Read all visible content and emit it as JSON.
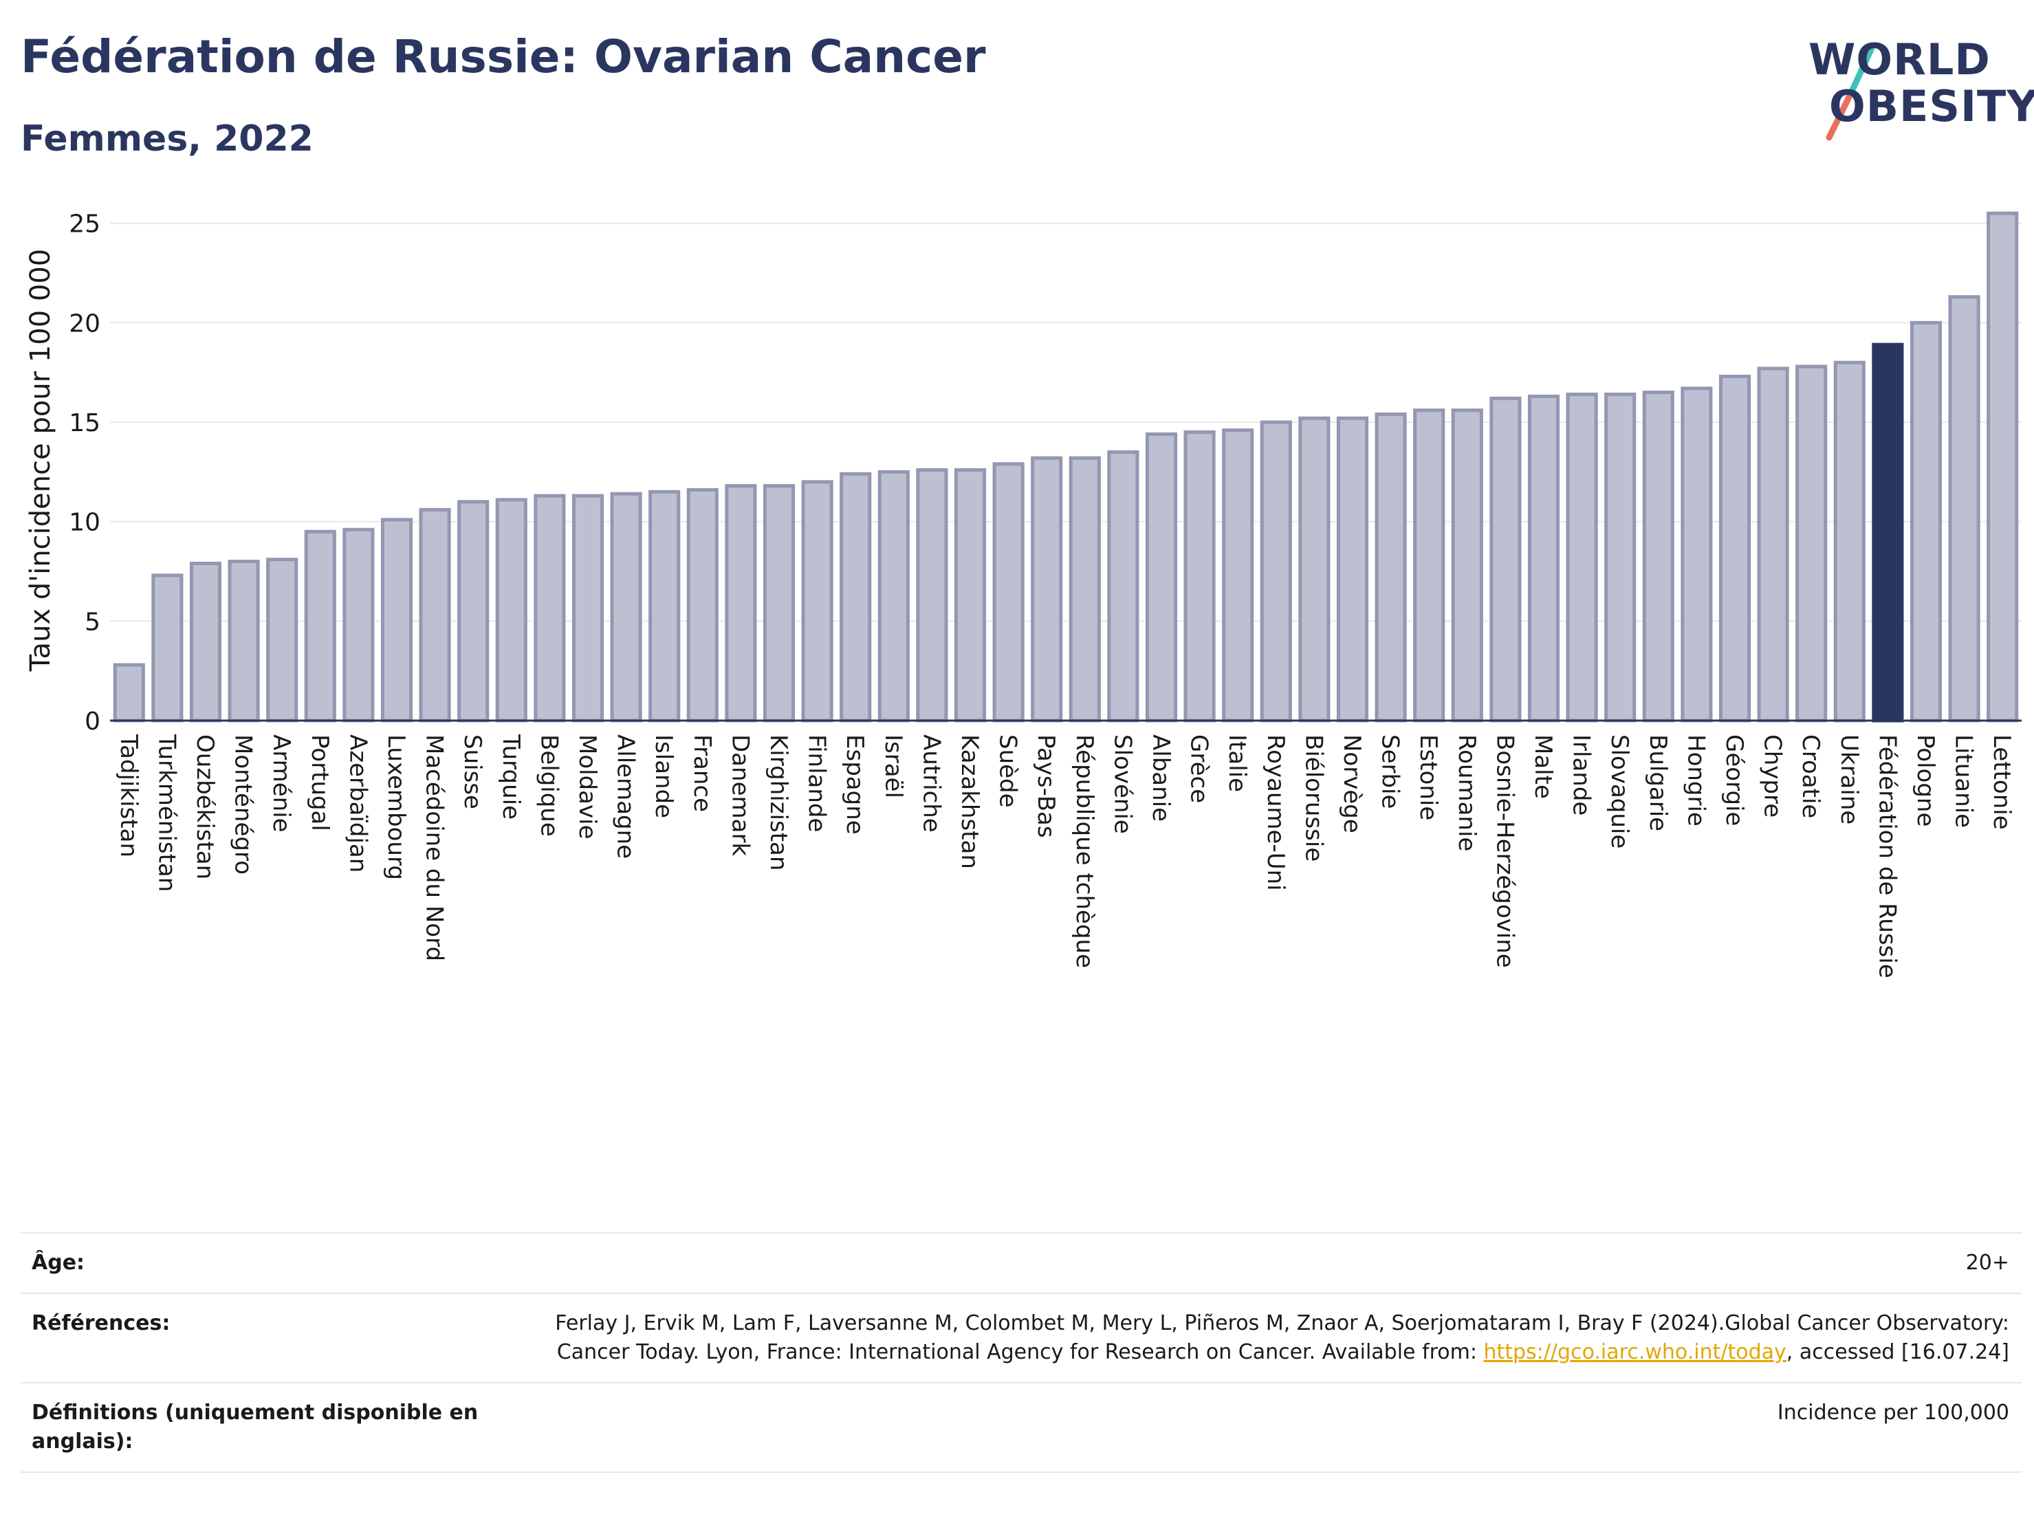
{
  "header": {
    "title": "Fédération de Russie: Ovarian Cancer",
    "subtitle": "Femmes, 2022"
  },
  "logo": {
    "line1": "WORLD",
    "line2": "OBESITY"
  },
  "colors": {
    "bar": "#bcc0d0",
    "bar_edge": "#9397b1",
    "highlight": "#2b3660",
    "grid": "#e8e8e8",
    "axis": "#2b3660"
  },
  "chart_data": {
    "type": "bar",
    "ylabel": "Taux d'incidence pour 100 000",
    "ylim": [
      0,
      26.2
    ],
    "yticks": [
      0,
      5,
      10,
      15,
      20,
      25
    ],
    "highlight": "Fédération de Russie",
    "grid": true,
    "categories": [
      "Tadjikistan",
      "Turkménistan",
      "Ouzbékistan",
      "Monténégro",
      "Arménie",
      "Portugal",
      "Azerbaïdjan",
      "Luxembourg",
      "Macédoine du Nord",
      "Suisse",
      "Turquie",
      "Belgique",
      "Moldavie",
      "Allemagne",
      "Islande",
      "France",
      "Danemark",
      "Kirghizistan",
      "Finlande",
      "Espagne",
      "Israël",
      "Autriche",
      "Kazakhstan",
      "Suède",
      "Pays-Bas",
      "République tchèque",
      "Slovénie",
      "Albanie",
      "Grèce",
      "Italie",
      "Royaume-Uni",
      "Biélorussie",
      "Norvège",
      "Serbie",
      "Estonie",
      "Roumanie",
      "Bosnie-Herzégovine",
      "Malte",
      "Irlande",
      "Slovaquie",
      "Bulgarie",
      "Hongrie",
      "Géorgie",
      "Chypre",
      "Croatie",
      "Ukraine",
      "Fédération de Russie",
      "Pologne",
      "Lituanie",
      "Lettonie"
    ],
    "values": [
      2.8,
      7.3,
      7.9,
      8.0,
      8.1,
      9.5,
      9.6,
      10.1,
      10.6,
      11.0,
      11.1,
      11.3,
      11.3,
      11.4,
      11.5,
      11.6,
      11.8,
      11.8,
      12.0,
      12.4,
      12.5,
      12.6,
      12.6,
      12.9,
      13.2,
      13.2,
      13.5,
      14.4,
      14.5,
      14.6,
      15.0,
      15.2,
      15.2,
      15.4,
      15.6,
      15.6,
      16.2,
      16.3,
      16.4,
      16.4,
      16.5,
      16.7,
      17.3,
      17.7,
      17.8,
      18.0,
      18.9,
      20.0,
      21.3,
      25.5
    ]
  },
  "footer": {
    "age_label": "Âge:",
    "age_value": "20+",
    "ref_label": "Références:",
    "ref_text_1": "Ferlay J, Ervik M, Lam F, Laversanne M, Colombet M, Mery L, Piñeros M, Znaor A, Soerjomataram I, Bray F (2024).Global Cancer Observatory: Cancer Today. Lyon, France: International Agency for Research on Cancer. Available from: ",
    "ref_link": "https://gco.iarc.who.int/today",
    "ref_text_2": ", accessed [16.07.24]",
    "def_label": "Définitions (uniquement disponible en anglais):",
    "def_value": "Incidence per 100,000"
  }
}
